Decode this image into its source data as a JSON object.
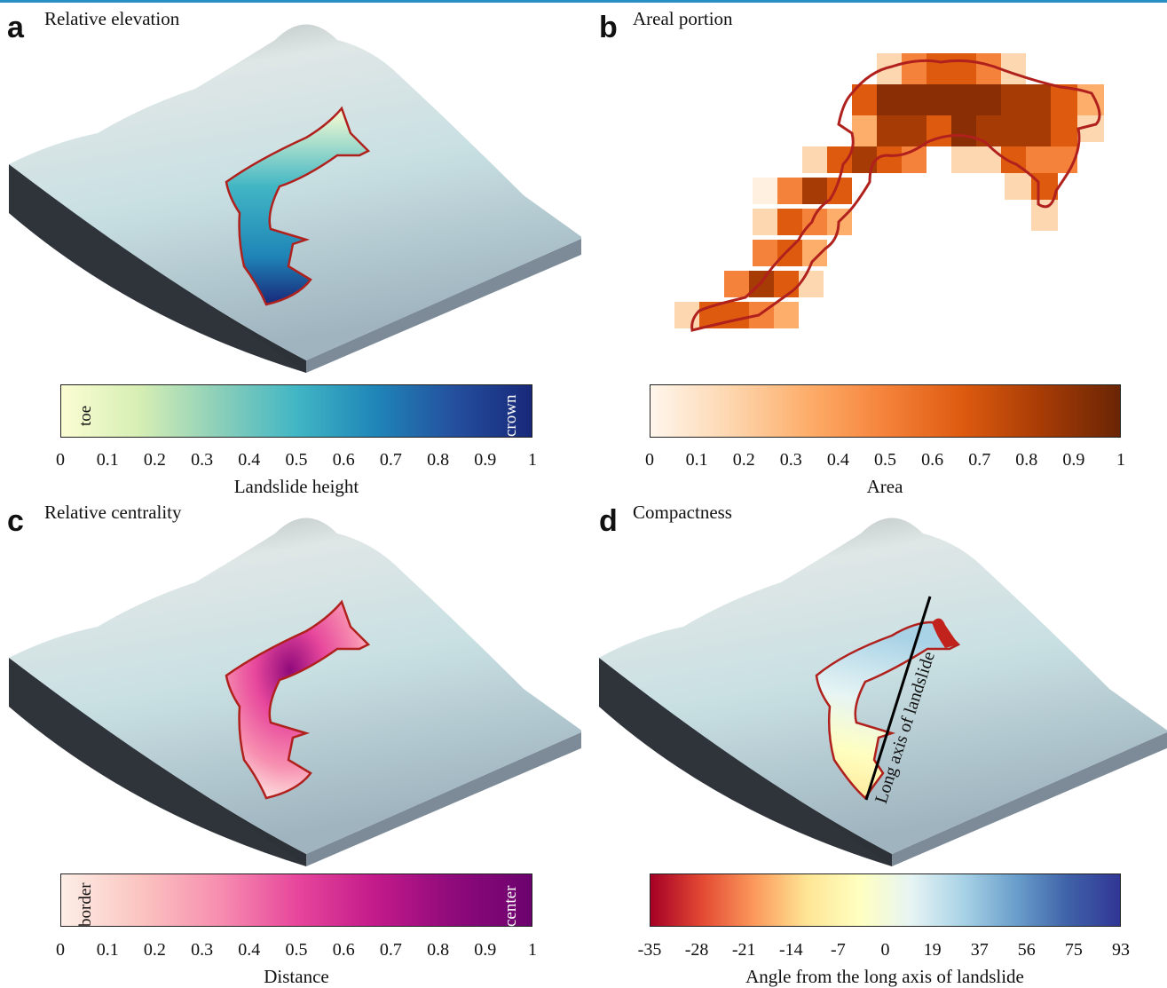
{
  "panels": [
    {
      "letter": "a",
      "title": "Relative elevation",
      "colorbar": {
        "colors": [
          "#fbfdd3",
          "#d6eeb4",
          "#8ccfb9",
          "#41b6c4",
          "#1f86b8",
          "#24509e",
          "#18287a"
        ],
        "end_labels": [
          "toe",
          "crown"
        ],
        "ticks": [
          "0",
          "0.1",
          "0.2",
          "0.3",
          "0.4",
          "0.5",
          "0.6",
          "0.7",
          "0.8",
          "0.9",
          "1"
        ],
        "axis_title": "Landslide height"
      }
    },
    {
      "letter": "b",
      "title": "Areal portion",
      "colorbar": {
        "colors": [
          "#fff6ec",
          "#fdd7b0",
          "#fdae6b",
          "#f5823a",
          "#dd5a0f",
          "#a63b05",
          "#6a2505"
        ],
        "end_labels": [
          "",
          ""
        ],
        "ticks": [
          "0",
          "0.1",
          "0.2",
          "0.3",
          "0.4",
          "0.5",
          "0.6",
          "0.7",
          "0.8",
          "0.9",
          "1"
        ],
        "axis_title": "Area"
      }
    },
    {
      "letter": "c",
      "title": "Relative centrality",
      "colorbar": {
        "colors": [
          "#fdeee6",
          "#fbc5c1",
          "#f78fb0",
          "#e7479c",
          "#c31a8a",
          "#8f0a7b",
          "#6b026e"
        ],
        "end_labels": [
          "border",
          "center"
        ],
        "ticks": [
          "0",
          "0.1",
          "0.2",
          "0.3",
          "0.4",
          "0.5",
          "0.6",
          "0.7",
          "0.8",
          "0.9",
          "1"
        ],
        "axis_title": "Distance"
      }
    },
    {
      "letter": "d",
      "title": "Compactness",
      "annotation": "Long axis of landslide",
      "colorbar": {
        "colors": [
          "#a50026",
          "#e34a33",
          "#fc9a5c",
          "#fee595",
          "#ffffc0",
          "#e6f4f4",
          "#a8d2e6",
          "#6a9fcb",
          "#3f62a8",
          "#313695"
        ],
        "end_labels": [
          "",
          ""
        ],
        "ticks": [
          "-35",
          "-28",
          "-21",
          "-14",
          "-7",
          "0",
          "19",
          "37",
          "56",
          "75",
          "93"
        ],
        "axis_title": "Angle from the long axis of landslide"
      }
    }
  ]
}
